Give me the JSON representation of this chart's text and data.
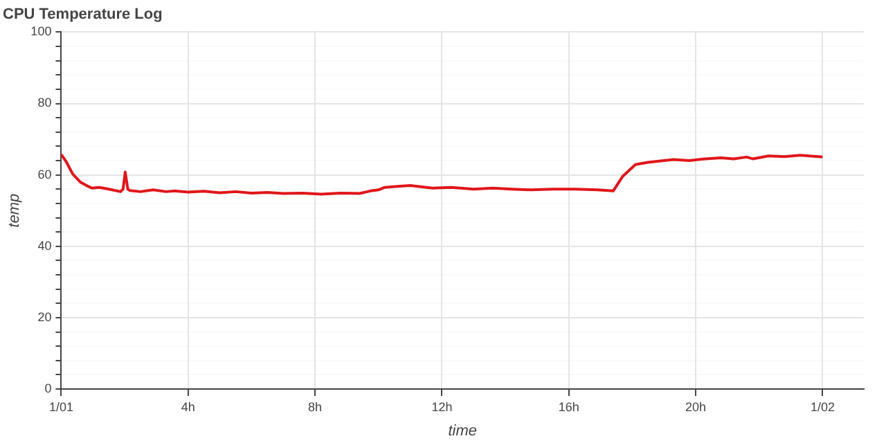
{
  "chart_data": {
    "type": "line",
    "title": "CPU Temperature Log",
    "xlabel": "time",
    "ylabel": "temp",
    "x": [
      "--01-01T00:00",
      "--01-01T00:09",
      "--01-01T00:22",
      "--01-01T00:36",
      "--01-01T00:48",
      "--01-01T00:58",
      "--01-01T01:12",
      "--01-01T01:30",
      "--01-01T01:52",
      "--01-01T01:57",
      "--01-01T02:01",
      "--01-01T02:06",
      "--01-01T02:10",
      "--01-01T02:30",
      "--01-01T02:54",
      "--01-01T03:18",
      "--01-01T03:36",
      "--01-01T04:00",
      "--01-01T04:30",
      "--01-01T05:00",
      "--01-01T05:30",
      "--01-01T06:00",
      "--01-01T06:30",
      "--01-01T07:00",
      "--01-01T07:36",
      "--01-01T08:12",
      "--01-01T08:48",
      "--01-01T09:24",
      "--01-01T09:45",
      "--01-01T10:00",
      "--01-01T10:12",
      "--01-01T10:36",
      "--01-01T11:00",
      "--01-01T11:42",
      "--01-01T12:18",
      "--01-01T13:00",
      "--01-01T13:36",
      "--01-01T14:12",
      "--01-01T14:48",
      "--01-01T15:30",
      "--01-01T16:12",
      "--01-01T16:54",
      "--01-01T17:24",
      "--01-01T17:42",
      "--01-01T18:06",
      "--01-01T18:30",
      "--01-01T18:48",
      "--01-01T19:18",
      "--01-01T19:48",
      "--01-01T20:18",
      "--01-01T20:48",
      "--01-01T21:12",
      "--01-01T21:36",
      "--01-01T21:48",
      "--01-01T22:18",
      "--01-01T22:48",
      "--01-01T23:18",
      "--01-01T23:42",
      "--01-02T00:00"
    ],
    "values": [
      65.7,
      63.8,
      60.2,
      58,
      57,
      56.3,
      56.5,
      56,
      55.3,
      56,
      60.8,
      56,
      55.6,
      55.3,
      55.8,
      55.3,
      55.5,
      55.2,
      55.4,
      55,
      55.3,
      54.9,
      55.1,
      54.8,
      54.9,
      54.6,
      54.9,
      54.8,
      55.5,
      55.8,
      56.5,
      56.8,
      57,
      56.3,
      56.5,
      56,
      56.3,
      56,
      55.8,
      56,
      56,
      55.8,
      55.5,
      59.6,
      62.9,
      63.5,
      63.8,
      64.3,
      64,
      64.5,
      64.8,
      64.5,
      65,
      64.5,
      65.3,
      65.1,
      65.5,
      65.2,
      65
    ],
    "color": "#e0161b",
    "xlim": [
      "--01-01T00:00",
      "--01-02T01:18"
    ],
    "xticks": [
      {
        "value": "--01-01T00:00",
        "label": "1/01"
      },
      {
        "value": "--01-01T04:00",
        "label": "4h"
      },
      {
        "value": "--01-01T08:00",
        "label": "8h"
      },
      {
        "value": "--01-01T12:00",
        "label": "12h"
      },
      {
        "value": "--01-01T16:00",
        "label": "16h"
      },
      {
        "value": "--01-01T20:00",
        "label": "20h"
      },
      {
        "value": "--01-02T00:00",
        "label": "1/02"
      }
    ],
    "ylim": [
      0,
      100
    ],
    "yticks": [
      0,
      {
        "value": 4,
        "label": null
      },
      {
        "value": 8,
        "label": null
      },
      {
        "value": 12,
        "label": null
      },
      {
        "value": 16,
        "label": null
      },
      20,
      {
        "value": 24,
        "label": null
      },
      {
        "value": 28,
        "label": null
      },
      {
        "value": 32,
        "label": null
      },
      {
        "value": 36,
        "label": null
      },
      40,
      {
        "value": 44,
        "label": null
      },
      {
        "value": 48,
        "label": null
      },
      {
        "value": 52,
        "label": null
      },
      {
        "value": 56,
        "label": null
      },
      60,
      {
        "value": 64,
        "label": null
      },
      {
        "value": 68,
        "label": null
      },
      {
        "value": 72,
        "label": null
      },
      {
        "value": 76,
        "label": null
      },
      80,
      {
        "value": 84,
        "label": null
      },
      {
        "value": 88,
        "label": null
      },
      {
        "value": 92,
        "label": null
      },
      {
        "value": 96,
        "label": null
      },
      100
    ],
    "grid": true,
    "legend": false,
    "marker": "none",
    "line_style": "solid"
  }
}
